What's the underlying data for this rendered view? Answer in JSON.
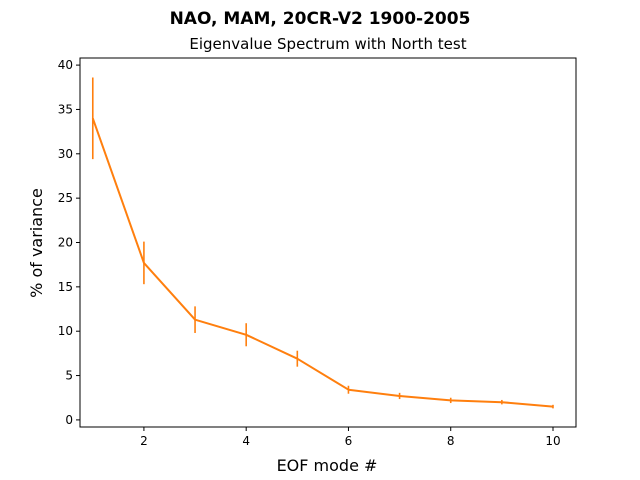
{
  "chart_data": {
    "type": "line",
    "title": "NAO, MAM, 20CR-V2 1900-2005",
    "subtitle": "Eigenvalue Spectrum with North test",
    "xlabel": "EOF mode #",
    "ylabel": "% of variance",
    "xlim": [
      0.75,
      10.45
    ],
    "ylim": [
      -0.8,
      40.8
    ],
    "xticks": [
      2,
      4,
      6,
      8,
      10
    ],
    "yticks": [
      0,
      5,
      10,
      15,
      20,
      25,
      30,
      35,
      40
    ],
    "grid": false,
    "colors": {
      "series": "#ff7f0e",
      "axes": "#000000"
    },
    "series": [
      {
        "x": [
          1,
          2,
          3,
          4,
          5,
          6,
          7,
          8,
          9,
          10
        ],
        "values": [
          34.0,
          17.7,
          11.3,
          9.6,
          6.9,
          3.4,
          2.7,
          2.2,
          2.0,
          1.5
        ],
        "error": [
          4.6,
          2.4,
          1.5,
          1.3,
          0.9,
          0.45,
          0.35,
          0.3,
          0.25,
          0.2
        ]
      }
    ]
  }
}
